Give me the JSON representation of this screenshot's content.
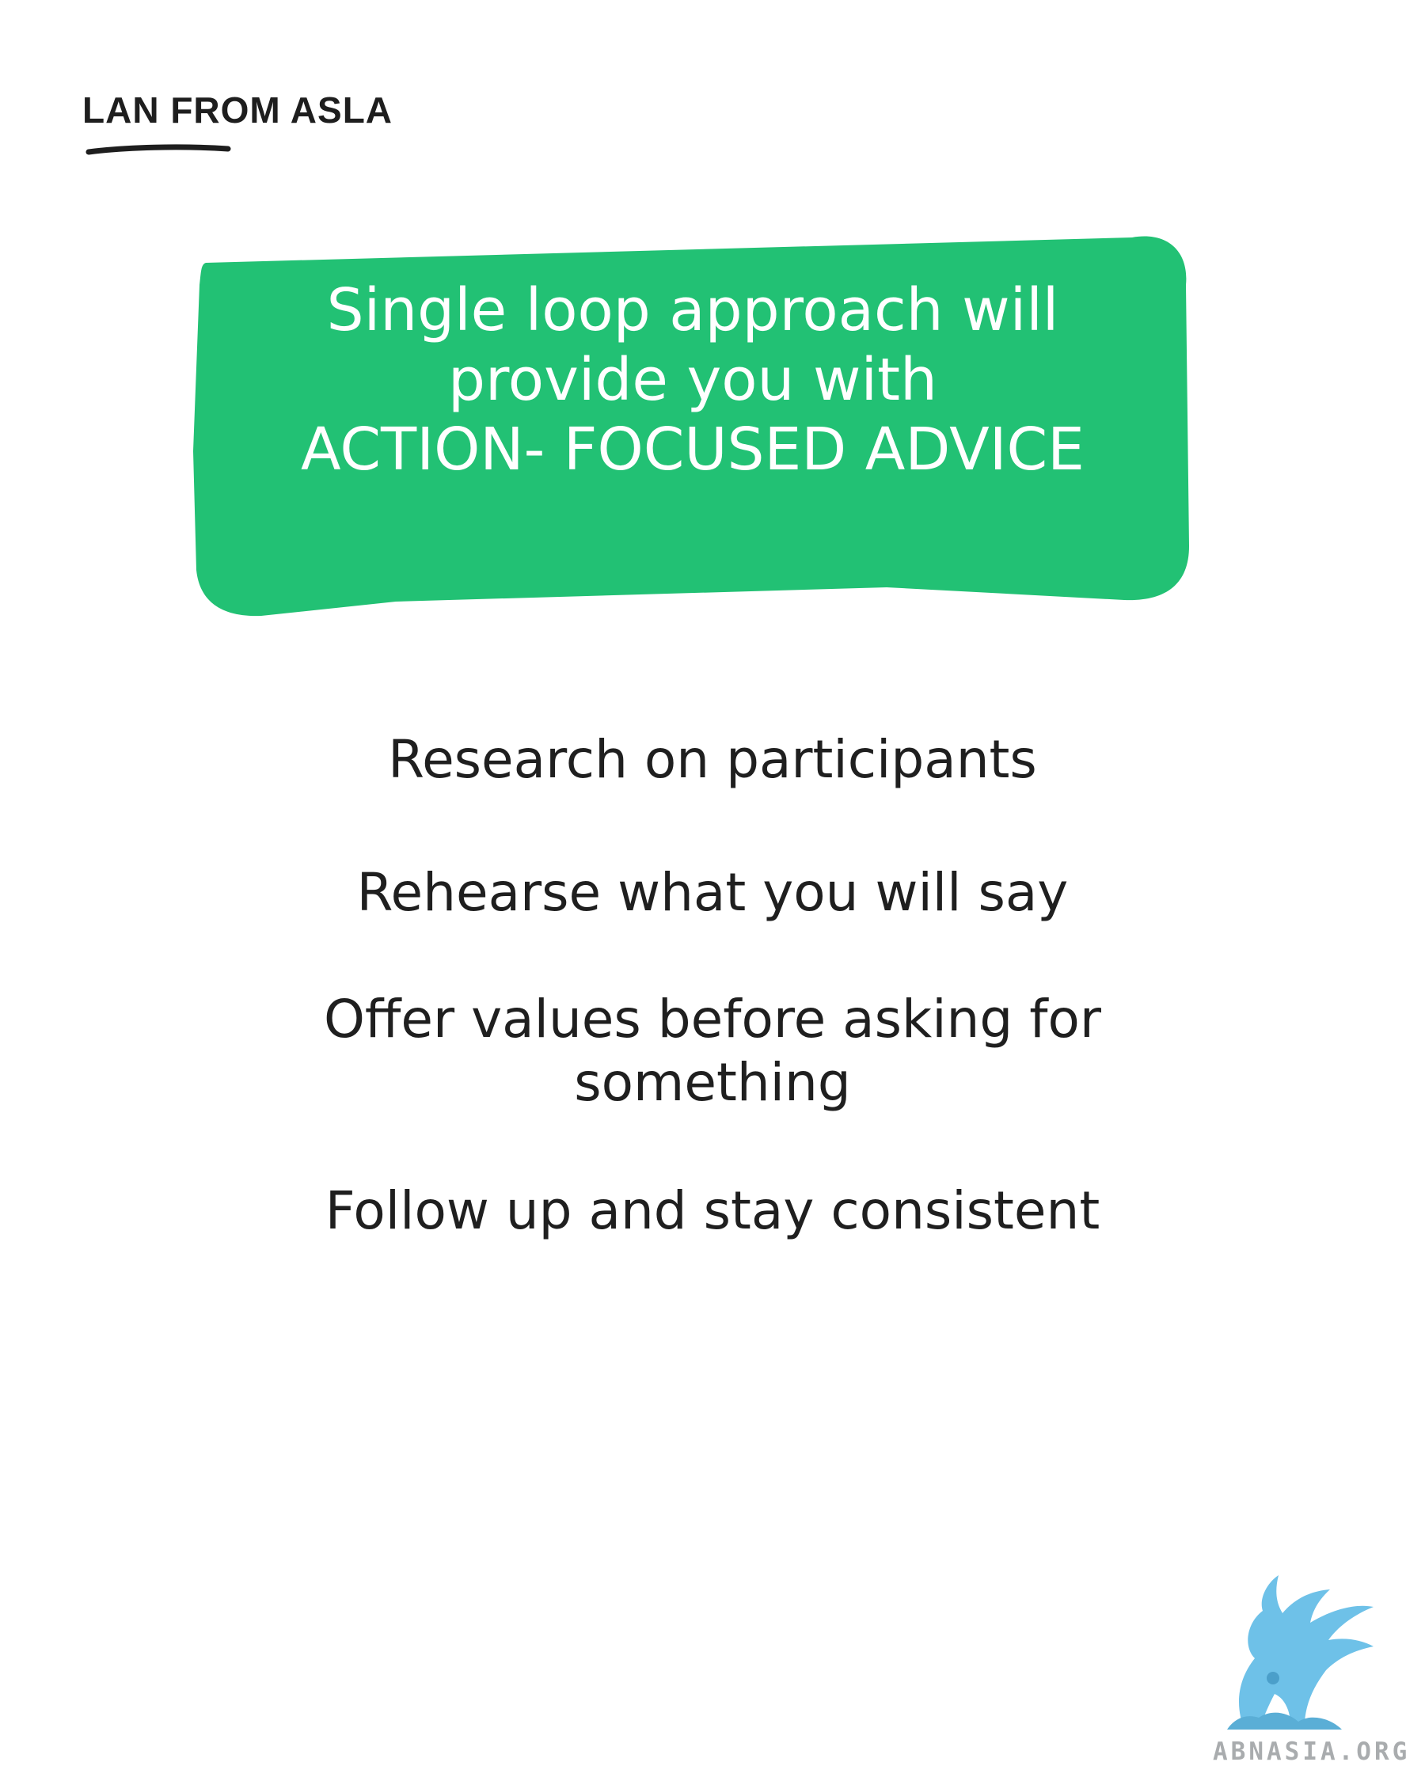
{
  "brand": {
    "name": "LAN FROM ASLA"
  },
  "hero": {
    "lines": [
      "Single loop approach will",
      "provide you with",
      "ACTION- FOCUSED ADVICE"
    ],
    "color": "#22c174"
  },
  "tips": [
    "Research on participants",
    "Rehearse what you will say",
    "Offer values before asking for",
    "something",
    "Follow up and stay consistent"
  ],
  "logo": {
    "icon": "winged-griffin-icon",
    "label": "ABNASIA.ORG",
    "color": "#6ec1e8"
  }
}
